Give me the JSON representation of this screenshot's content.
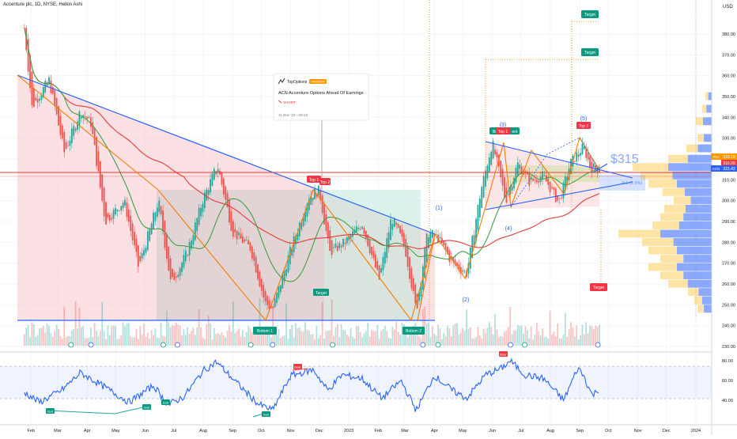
{
  "header": {
    "symbol_title": "Accenture plc, 1D, NYSE, Heikin Ashi",
    "currency": "USD"
  },
  "price_axis": {
    "ticks": [
      "380.00",
      "370.00",
      "360.00",
      "350.00",
      "340.00",
      "330.00",
      "320.00",
      "310.00",
      "300.00",
      "290.00",
      "280.00",
      "270.00",
      "260.00",
      "250.00",
      "240.00",
      "230.00"
    ],
    "badges": [
      {
        "label": "Pre",
        "value": "316.18",
        "color": "#ff9800"
      },
      {
        "label": "",
        "value": "316.09",
        "color": "#f23645"
      },
      {
        "label": "ACN",
        "value": "315.43",
        "color": "#2962ff"
      }
    ]
  },
  "rsi_axis": {
    "ticks": [
      "80.00",
      "60.00",
      "40.00"
    ]
  },
  "time_axis": {
    "labels": [
      "Feb",
      "Mar",
      "Apr",
      "May",
      "Jun",
      "Jul",
      "Aug",
      "Sep",
      "Oct",
      "Nov",
      "Dec",
      "2023",
      "Feb",
      "Mar",
      "Apr",
      "May",
      "Jun",
      "Jul",
      "Aug",
      "Sep",
      "Oct",
      "Nov",
      "Dec",
      "2024"
    ]
  },
  "idea_card": {
    "brand": "TopOptions",
    "badge": "PREMIUM",
    "title": "ACN Accenture Options Ahead Of Earnings",
    "direction": "SHORT",
    "date": "11 Dec '22 - 09:23"
  },
  "annotations": {
    "price_tag": "$315",
    "range_text": "-9.1 (2.9%)",
    "targets": [
      "Target",
      "Target",
      "Target",
      "Target"
    ],
    "tops": [
      "Top 1",
      "Top 2",
      "Top 1",
      "Top 2"
    ],
    "bottoms": [
      "Bottom 1",
      "Bottom 2"
    ],
    "wave_labels": [
      "(1)",
      "(2)",
      "(3)",
      "(4)",
      "(5)"
    ],
    "partial_label": "Bull",
    "partial_label_end": "ent",
    "rsi_labels": [
      "Bull",
      "Bull",
      "Bull",
      "Bull",
      "Bear",
      "Bear"
    ]
  },
  "colors": {
    "candle_up": "#26a69a",
    "candle_down": "#ef5350",
    "trendline": "#2962ff",
    "zigzag": "#f57c00",
    "ma_red": "#e53935",
    "ma_green": "#43a047",
    "rsi_line": "#2962ff"
  },
  "chart_data": {
    "type": "candlestick",
    "title": "Accenture plc, 1D, NYSE, Heikin Ashi",
    "ylim": [
      230,
      385
    ],
    "rsi_ylim": [
      20,
      85
    ],
    "price_anchors": {
      "dates": [
        "2022-01-25",
        "2022-02-02",
        "2022-02-20",
        "2022-03-08",
        "2022-03-25",
        "2022-04-05",
        "2022-04-20",
        "2022-05-10",
        "2022-05-25",
        "2022-06-15",
        "2022-06-28",
        "2022-07-15",
        "2022-08-01",
        "2022-08-16",
        "2022-09-01",
        "2022-09-20",
        "2022-10-05",
        "2022-10-13",
        "2022-10-31",
        "2022-11-20",
        "2022-12-01",
        "2022-12-12",
        "2022-12-28",
        "2023-01-15",
        "2023-02-02",
        "2023-02-15",
        "2023-03-01",
        "2023-03-13",
        "2023-03-25",
        "2023-04-05",
        "2023-04-20",
        "2023-05-05",
        "2023-05-20",
        "2023-06-01",
        "2023-06-15",
        "2023-06-28",
        "2023-07-10",
        "2023-07-24",
        "2023-08-10",
        "2023-08-22",
        "2023-09-05",
        "2023-09-12",
        "2023-09-22"
      ],
      "closes": [
        383,
        345,
        358,
        323,
        343,
        337,
        290,
        300,
        268,
        300,
        260,
        275,
        301,
        317,
        285,
        277,
        251,
        248,
        275,
        302,
        305,
        275,
        280,
        289,
        262,
        292,
        278,
        247,
        285,
        282,
        270,
        265,
        305,
        328,
        300,
        318,
        309,
        312,
        299,
        318,
        326,
        316,
        315
      ]
    },
    "rsi_anchors": {
      "dates": [
        "2022-01-25",
        "2022-02-10",
        "2022-03-05",
        "2022-03-25",
        "2022-04-15",
        "2022-05-15",
        "2022-06-10",
        "2022-06-25",
        "2022-07-12",
        "2022-08-01",
        "2022-08-15",
        "2022-09-05",
        "2022-09-28",
        "2022-10-13",
        "2022-11-01",
        "2022-11-25",
        "2022-12-10",
        "2022-12-25",
        "2023-01-15",
        "2023-02-05",
        "2023-02-25",
        "2023-03-13",
        "2023-04-01",
        "2023-04-20",
        "2023-05-05",
        "2023-05-25",
        "2023-06-10",
        "2023-06-20",
        "2023-07-05",
        "2023-07-25",
        "2023-08-15",
        "2023-08-30",
        "2023-09-05",
        "2023-09-14",
        "2023-09-22"
      ],
      "values": [
        48,
        38,
        50,
        68,
        56,
        38,
        55,
        35,
        44,
        70,
        79,
        58,
        36,
        30,
        65,
        71,
        50,
        66,
        62,
        42,
        60,
        30,
        65,
        50,
        42,
        66,
        72,
        80,
        66,
        62,
        40,
        73,
        65,
        45,
        52
      ]
    }
  }
}
